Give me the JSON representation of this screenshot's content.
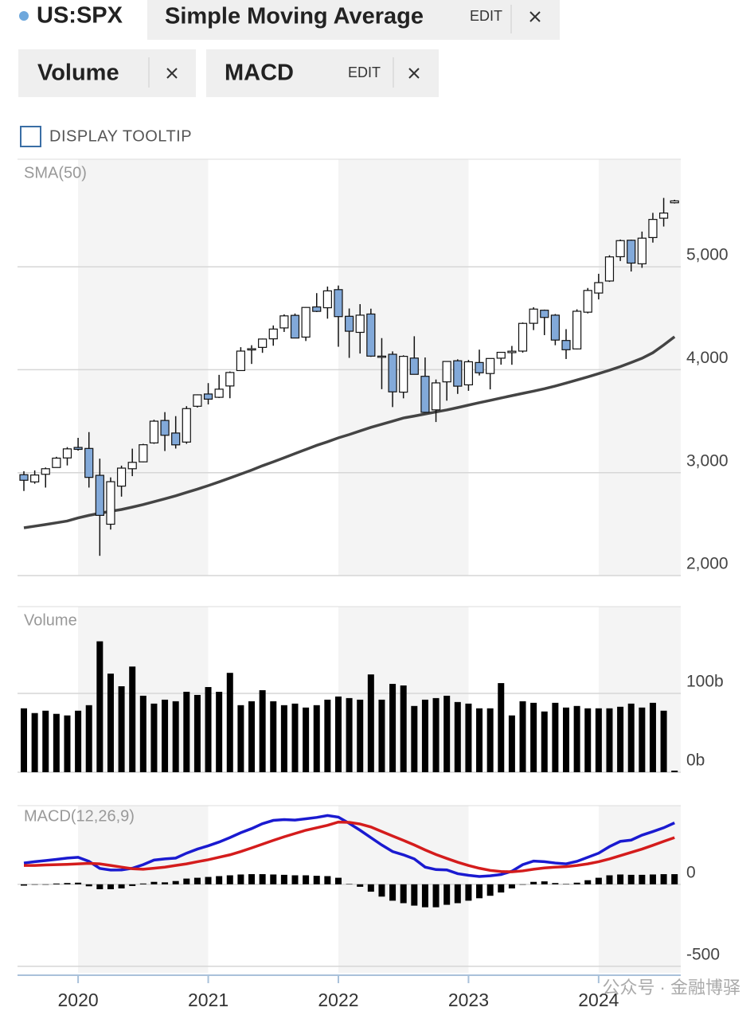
{
  "toolbar": {
    "symbol": "US:SPX",
    "chips": [
      {
        "name": "Simple Moving Average",
        "edit": "EDIT"
      },
      {
        "name": "Volume"
      },
      {
        "name": "MACD",
        "edit": "EDIT"
      }
    ],
    "tooltip": "DISPLAY TOOLTIP"
  },
  "watermark": "公众号 · 金融博驿",
  "chart_data": [
    {
      "type": "candlestick",
      "categories": [
        null,
        null,
        null,
        null,
        null,
        "2020",
        null,
        null,
        null,
        null,
        null,
        null,
        null,
        null,
        null,
        null,
        null,
        "2021",
        null,
        null,
        null,
        null,
        null,
        null,
        null,
        null,
        null,
        null,
        null,
        "2022",
        null,
        null,
        null,
        null,
        null,
        null,
        null,
        null,
        null,
        null,
        null,
        "2023",
        null,
        null,
        null,
        null,
        null,
        null,
        null,
        null,
        null,
        null,
        null,
        "2024",
        null,
        null,
        null,
        null,
        null,
        null,
        null
      ],
      "open": [
        2980,
        2910,
        2984,
        3050,
        3143,
        3245,
        3235,
        2974,
        2499,
        2869,
        3038,
        3105,
        3289,
        3507,
        3385,
        3297,
        3645,
        3764,
        3732,
        3842,
        3992,
        4192,
        4217,
        4300,
        4406,
        4528,
        4317,
        4610,
        4602,
        4778,
        4519,
        4363,
        4541,
        4131,
        4150,
        3782,
        4113,
        3936,
        3610,
        3882,
        4087,
        3853,
        4070,
        3963,
        4112,
        4166,
        4181,
        4451,
        4578,
        4530,
        4284,
        4202,
        4559,
        4745,
        4862,
        5098,
        5258,
        5029,
        5284,
        5472,
        5622
      ],
      "high": [
        3014,
        3022,
        3050,
        3154,
        3248,
        3338,
        3394,
        3136,
        2954,
        3068,
        3233,
        3280,
        3514,
        3588,
        3549,
        3646,
        3760,
        3870,
        3950,
        3983,
        4219,
        4238,
        4302,
        4430,
        4538,
        4546,
        4608,
        4744,
        4808,
        4818,
        4595,
        4637,
        4593,
        4307,
        4178,
        4140,
        4325,
        4119,
        3905,
        4080,
        4101,
        4095,
        4195,
        4110,
        4170,
        4231,
        4459,
        4607,
        4584,
        4541,
        4394,
        4587,
        4794,
        4932,
        5112,
        5265,
        5264,
        5342,
        5524,
        5669,
        5651
      ],
      "low": [
        2822,
        2892,
        2855,
        3050,
        3070,
        3214,
        2855,
        2192,
        2447,
        2767,
        2966,
        3101,
        3280,
        3210,
        3234,
        3280,
        3633,
        3663,
        3725,
        3723,
        3992,
        4056,
        4164,
        4233,
        4367,
        4306,
        4279,
        4560,
        4496,
        4223,
        4115,
        4157,
        4125,
        3811,
        3637,
        3722,
        3955,
        3585,
        3492,
        3699,
        3765,
        3795,
        3944,
        3809,
        4049,
        4048,
        4166,
        4385,
        4336,
        4238,
        4104,
        4197,
        4547,
        4683,
        4853,
        5056,
        4954,
        4990,
        5235,
        5391,
        5615
      ],
      "close": [
        2926,
        2977,
        3038,
        3141,
        3231,
        3226,
        2954,
        2585,
        2912,
        3044,
        3100,
        3271,
        3500,
        3363,
        3270,
        3622,
        3756,
        3714,
        3811,
        3973,
        4181,
        4204,
        4298,
        4395,
        4523,
        4308,
        4605,
        4567,
        4766,
        4516,
        4374,
        4530,
        4132,
        4132,
        3785,
        4130,
        3955,
        3586,
        3872,
        4080,
        3840,
        4077,
        3970,
        4109,
        4169,
        4180,
        4450,
        4589,
        4508,
        4288,
        4194,
        4568,
        4770,
        4846,
        5096,
        5254,
        5036,
        5278,
        5460,
        5522,
        5640
      ],
      "up_color": "#ffffff",
      "down_color": "#82a9d9",
      "series": [
        {
          "name": "SMA(50)",
          "color": "#444444",
          "values": [
            2464,
            2480,
            2496,
            2513,
            2530,
            2560,
            2585,
            2605,
            2625,
            2642,
            2665,
            2690,
            2718,
            2746,
            2775,
            2808,
            2840,
            2874,
            2910,
            2948,
            2986,
            3025,
            3067,
            3105,
            3145,
            3185,
            3225,
            3265,
            3300,
            3338,
            3370,
            3405,
            3440,
            3470,
            3500,
            3531,
            3550,
            3570,
            3590,
            3609,
            3632,
            3656,
            3680,
            3702,
            3725,
            3748,
            3770,
            3792,
            3815,
            3841,
            3870,
            3900,
            3930,
            3962,
            3995,
            4030,
            4070,
            4111,
            4165,
            4240,
            4320
          ]
        }
      ],
      "ylim": [
        2000,
        6045
      ],
      "yticks": [
        {
          "value": 2000,
          "label": "2,000"
        },
        {
          "value": 3000,
          "label": "3,000"
        },
        {
          "value": 4000,
          "label": "4,000"
        },
        {
          "value": 5000,
          "label": "5,000"
        }
      ],
      "grid": true
    },
    {
      "type": "bar",
      "series": [
        {
          "name": "Volume",
          "color": "#000000",
          "values": [
            81,
            75,
            78,
            74,
            72,
            78,
            85,
            166,
            125,
            109,
            134,
            97,
            87,
            92,
            90,
            102,
            98,
            108,
            102,
            126,
            85,
            90,
            104,
            90,
            85,
            87,
            82,
            85,
            92,
            96,
            94,
            92,
            124,
            92,
            112,
            110,
            84,
            92,
            94,
            97,
            89,
            87,
            81,
            81,
            113,
            72,
            90,
            88,
            77,
            88,
            82,
            84,
            81,
            81,
            81,
            83,
            87,
            82,
            88,
            78,
            2
          ]
        }
      ],
      "ylim": [
        0,
        210
      ],
      "yticks": [
        {
          "value": 0,
          "label": "0b"
        },
        {
          "value": 100,
          "label": "100b"
        }
      ],
      "grid": true
    },
    {
      "type": "line",
      "label": "MACD(12,26,9)",
      "series": [
        {
          "color": "#1a1ad0",
          "kind": "line",
          "values": [
            130,
            138,
            145,
            152,
            160,
            165,
            140,
            97,
            87,
            88,
            98,
            120,
            148,
            155,
            160,
            190,
            215,
            235,
            258,
            285,
            315,
            340,
            370,
            390,
            395,
            392,
            400,
            408,
            420,
            410,
            372,
            330,
            285,
            240,
            200,
            180,
            155,
            105,
            90,
            88,
            65,
            55,
            48,
            52,
            60,
            80,
            120,
            142,
            138,
            130,
            125,
            140,
            165,
            190,
            230,
            262,
            270,
            300,
            322,
            345,
            375
          ]
        },
        {
          "color": "#d41c1c",
          "kind": "line",
          "values": [
            115,
            115,
            118,
            120,
            122,
            125,
            128,
            125,
            115,
            105,
            95,
            92,
            98,
            105,
            115,
            125,
            138,
            150,
            165,
            180,
            200,
            222,
            245,
            268,
            290,
            310,
            330,
            345,
            360,
            380,
            378,
            368,
            350,
            322,
            295,
            268,
            240,
            210,
            182,
            158,
            135,
            115,
            98,
            85,
            78,
            76,
            82,
            92,
            100,
            105,
            108,
            115,
            125,
            138,
            155,
            175,
            195,
            215,
            238,
            262,
            285
          ]
        },
        {
          "color": "#000000",
          "kind": "bar",
          "values": [
            -8,
            0,
            0,
            5,
            8,
            10,
            -12,
            -30,
            -30,
            -25,
            -10,
            5,
            15,
            12,
            20,
            35,
            40,
            45,
            50,
            55,
            60,
            62,
            62,
            60,
            58,
            55,
            55,
            52,
            50,
            40,
            2,
            -15,
            -45,
            -75,
            -100,
            -115,
            -130,
            -140,
            -140,
            -125,
            -115,
            -100,
            -85,
            -70,
            -50,
            -25,
            0,
            15,
            18,
            8,
            2,
            10,
            25,
            40,
            55,
            60,
            58,
            58,
            60,
            62,
            62
          ]
        }
      ],
      "ylim": [
        -540,
        480
      ],
      "yticks": [
        0,
        -500
      ],
      "grid": true
    }
  ]
}
